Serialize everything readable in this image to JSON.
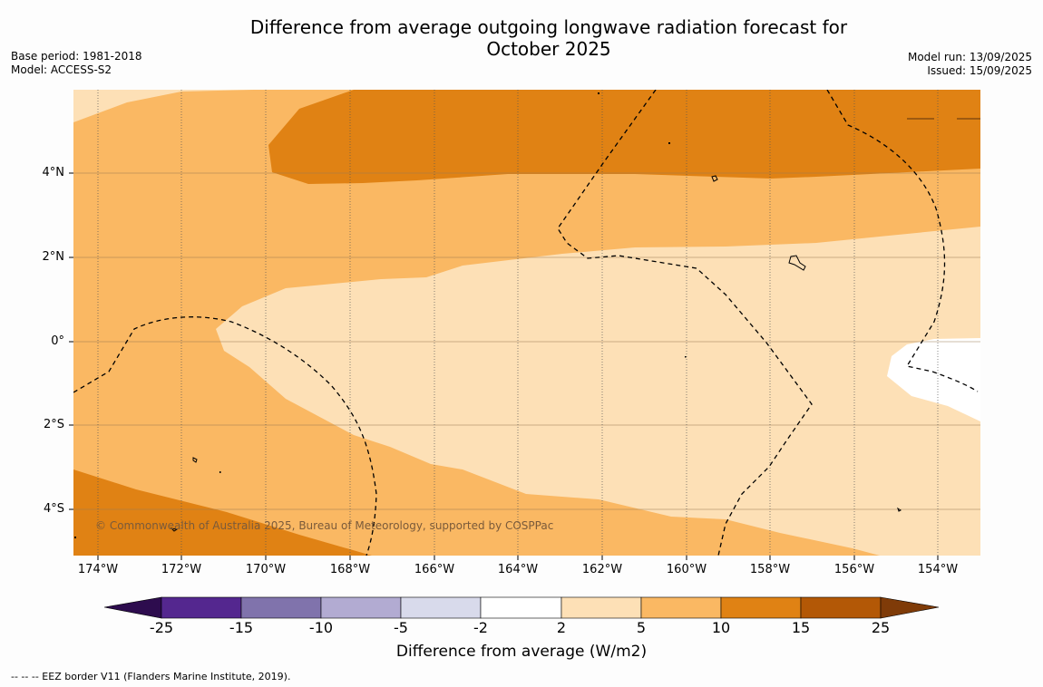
{
  "title": "Difference from average outgoing longwave radiation forecast for October 2025",
  "title_lines": [
    "Difference from average outgoing longwave radiation forecast for",
    "October 2025"
  ],
  "meta_left": [
    "Base period: 1981-2018",
    "Model: ACCESS-S2"
  ],
  "meta_right": [
    "Model run: 13/09/2025",
    "Issued: 15/09/2025"
  ],
  "lat_labels": [
    "4°N",
    "2°N",
    "0°",
    "2°S",
    "4°S"
  ],
  "lon_labels": [
    "174°W",
    "172°W",
    "170°W",
    "168°W",
    "166°W",
    "164°W",
    "162°W",
    "160°W",
    "158°W",
    "156°W",
    "154°W"
  ],
  "copyright": "© Commonwealth of Australia 2025, Bureau of Meteorology, supported by COSPPac",
  "colorbar": {
    "title": "Difference from average (W/m2)",
    "tick_labels": [
      "-25",
      "-15",
      "-10",
      "-5",
      "-2",
      "2",
      "5",
      "10",
      "15",
      "25"
    ],
    "colors": [
      "#2d0c4e",
      "#54278f",
      "#8073ac",
      "#b2abd2",
      "#d8daeb",
      "#ffffff",
      "#fde0b6",
      "#fab863",
      "#e08214",
      "#b35806",
      "#7f3b08"
    ],
    "bins": [
      "< -25",
      "-25 to -15",
      "-15 to -10",
      "-10 to -5",
      "-5 to -2",
      "-2 to 2",
      "2 to 5",
      "5 to 10",
      "10 to 15",
      "15 to 25",
      "> 25"
    ]
  },
  "footer": "--  --  -- EEZ border V11 (Flanders Marine Institute, 2019).",
  "map": {
    "extent_lon": [
      -174.6,
      -153.1
    ],
    "extent_lat": [
      -5.1,
      5.9
    ],
    "region_colors": {
      "light": "#fde0b6",
      "mid": "#fab863",
      "dark": "#e08214",
      "white": "#ffffff"
    }
  }
}
